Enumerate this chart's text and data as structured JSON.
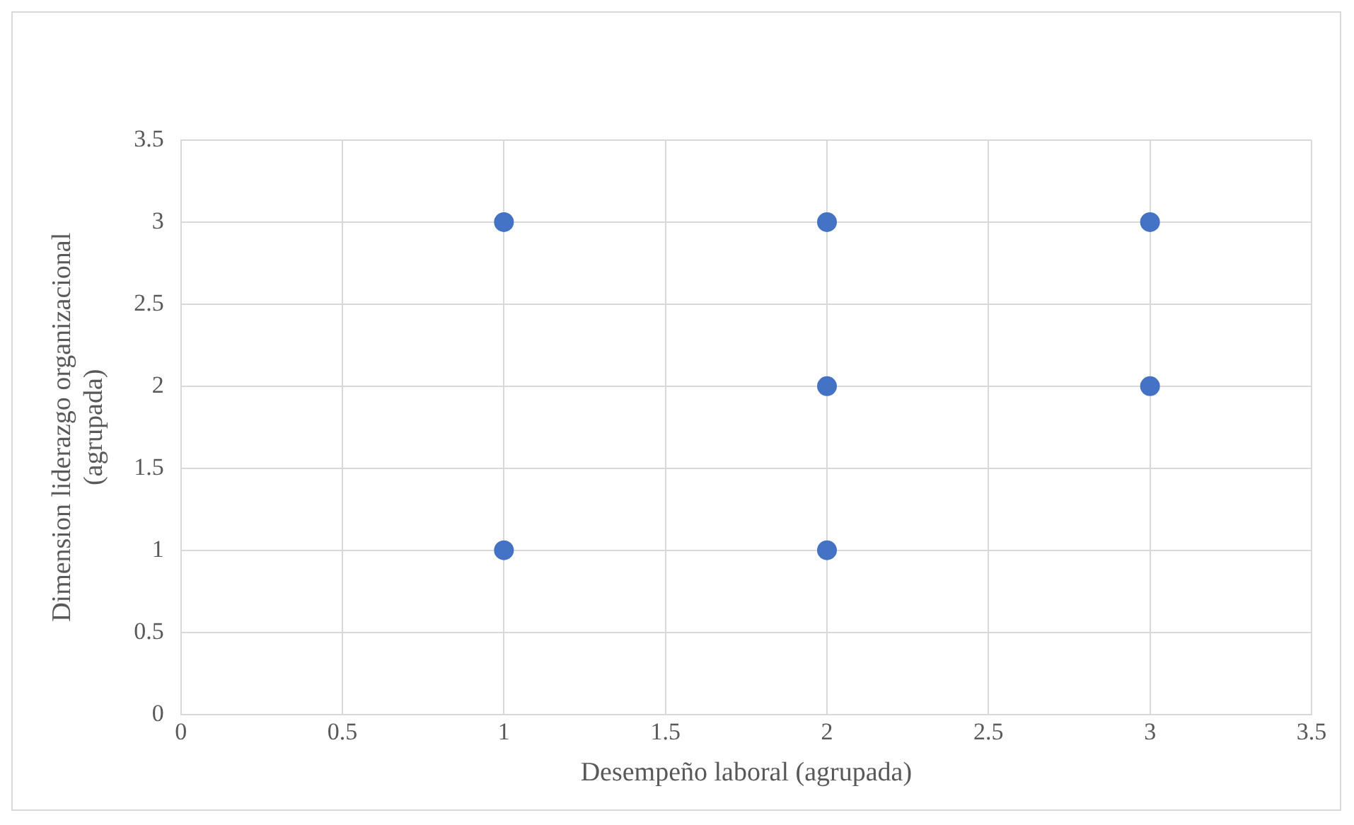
{
  "chart_data": {
    "type": "scatter",
    "xlabel": "Desempeño laboral (agrupada)",
    "ylabel": "Dimension liderazgo organizacional\n(agrupada)",
    "x": [
      1,
      2,
      3,
      2,
      3,
      1,
      2
    ],
    "series": [
      {
        "color": "#4472c4",
        "values": [
          3,
          3,
          3,
          2,
          2,
          1,
          1
        ]
      }
    ],
    "xlim": [
      0,
      3.5
    ],
    "xticks": [
      0,
      0.5,
      1,
      1.5,
      2,
      2.5,
      3,
      3.5
    ],
    "ylim": [
      0,
      3.5
    ],
    "yticks": [
      0,
      0.5,
      1,
      1.5,
      2,
      2.5,
      3,
      3.5
    ],
    "grid": true,
    "legend": false,
    "marker": "circle"
  }
}
